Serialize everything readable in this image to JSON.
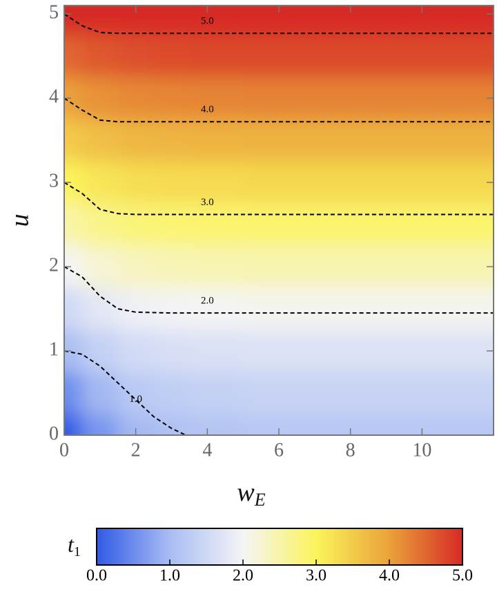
{
  "chart_data": {
    "type": "density",
    "xlabel": {
      "main": "w",
      "sub": "E"
    },
    "ylabel": "u",
    "xlim": [
      0,
      12
    ],
    "ylim": [
      0,
      5.1
    ],
    "xticks": [
      0,
      2,
      4,
      6,
      8,
      10
    ],
    "yticks": [
      0,
      1,
      2,
      3,
      4,
      5
    ],
    "grid_x": [
      0,
      1,
      2,
      3,
      4,
      6,
      8,
      12
    ],
    "grid_y": [
      0,
      0.5,
      1,
      1.5,
      2,
      2.5,
      3,
      3.5,
      4,
      4.5,
      5
    ],
    "z": [
      [
        0,
        0.6,
        0.96,
        1.08,
        1.14,
        1.2,
        1.2,
        1.2
      ],
      [
        0.5,
        0.95,
        1.22,
        1.31,
        1.36,
        1.4,
        1.4,
        1.4
      ],
      [
        1,
        1.34,
        1.54,
        1.61,
        1.65,
        1.68,
        1.68,
        1.68
      ],
      [
        1.5,
        1.77,
        1.93,
        1.99,
        2.01,
        2.04,
        2.04,
        2.04
      ],
      [
        2,
        2.23,
        2.36,
        2.41,
        2.43,
        2.45,
        2.45,
        2.45
      ],
      [
        2.5,
        2.7,
        2.81,
        2.85,
        2.87,
        2.89,
        2.89,
        2.89
      ],
      [
        3,
        3.17,
        3.27,
        3.31,
        3.32,
        3.34,
        3.34,
        3.34
      ],
      [
        3.5,
        3.65,
        3.74,
        3.77,
        3.79,
        3.8,
        3.8,
        3.8
      ],
      [
        4,
        4.13,
        4.21,
        4.23,
        4.25,
        4.26,
        4.26,
        4.26
      ],
      [
        4.5,
        4.62,
        4.69,
        4.72,
        4.73,
        4.74,
        4.74,
        4.74
      ],
      [
        5,
        5.11,
        5.18,
        5.2,
        5.21,
        5.22,
        5.22,
        5.22
      ]
    ],
    "colormap": [
      "#2f5ae6",
      "#a9bdf3",
      "#f4f4f6",
      "#fbf45c",
      "#eaa23a",
      "#d72a27"
    ],
    "clim": [
      0,
      5
    ],
    "colorbar_label": {
      "main": "t",
      "sub": "1"
    },
    "colorbar_ticks": [
      {
        "value": 0,
        "label": "0.0"
      },
      {
        "value": 1,
        "label": "1.0"
      },
      {
        "value": 2,
        "label": "2.0"
      },
      {
        "value": 3,
        "label": "3.0"
      },
      {
        "value": 4,
        "label": "4.0"
      },
      {
        "value": 5,
        "label": "5.0"
      }
    ],
    "contours": [
      {
        "level": 1,
        "label": "1.0",
        "x": [
          0,
          0.5,
          1,
          1.5,
          2,
          2.5,
          3,
          3.4
        ],
        "y": [
          1,
          0.96,
          0.82,
          0.62,
          0.42,
          0.22,
          0.08,
          0
        ]
      },
      {
        "level": 2,
        "label": "2.0",
        "x": [
          0,
          0.5,
          1,
          1.5,
          2,
          3,
          12
        ],
        "y": [
          2,
          1.88,
          1.65,
          1.5,
          1.46,
          1.45,
          1.45
        ]
      },
      {
        "level": 3,
        "label": "3.0",
        "x": [
          0,
          0.5,
          1,
          1.5,
          2,
          12
        ],
        "y": [
          3,
          2.87,
          2.68,
          2.63,
          2.62,
          2.62
        ]
      },
      {
        "level": 4,
        "label": "4.0",
        "x": [
          0,
          0.5,
          1,
          1.5,
          12
        ],
        "y": [
          4,
          3.86,
          3.74,
          3.72,
          3.72
        ]
      },
      {
        "level": 5,
        "label": "5.0",
        "x": [
          0,
          0.5,
          1,
          1.5,
          12
        ],
        "y": [
          5,
          4.86,
          4.78,
          4.77,
          4.77
        ]
      }
    ]
  }
}
